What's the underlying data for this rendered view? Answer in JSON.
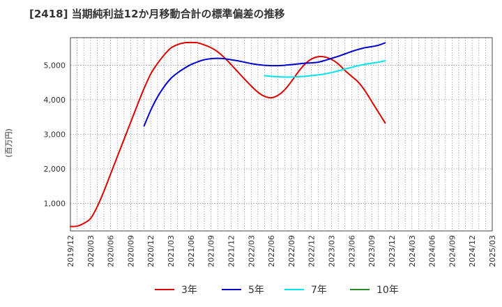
{
  "chart_data": {
    "type": "line",
    "title": "[2418]  当期純利益12か月移動合計の標準偏差の推移",
    "ylabel": "(百万円)",
    "xlabel": "",
    "ylim": [
      200,
      5800
    ],
    "yticks": [
      1000,
      2000,
      3000,
      4000,
      5000
    ],
    "ytick_labels": [
      "1,000",
      "2,000",
      "3,000",
      "4,000",
      "5,000"
    ],
    "xtick_labels": [
      "2019/12",
      "2020/03",
      "2020/06",
      "2020/09",
      "2020/12",
      "2021/03",
      "2021/06",
      "2021/09",
      "2021/12",
      "2022/03",
      "2022/06",
      "2022/09",
      "2022/12",
      "2023/03",
      "2023/06",
      "2023/09",
      "2023/12",
      "2024/03",
      "2024/06",
      "2024/09",
      "2024/12",
      "2025/03"
    ],
    "grid": true,
    "legend_position": "bottom",
    "series": [
      {
        "name": "3年",
        "color": "#dd0000",
        "points": [
          [
            0,
            330
          ],
          [
            1,
            340
          ],
          [
            2,
            420
          ],
          [
            3,
            560
          ],
          [
            4,
            900
          ],
          [
            5,
            1350
          ],
          [
            6,
            1850
          ],
          [
            7,
            2350
          ],
          [
            8,
            2850
          ],
          [
            9,
            3350
          ],
          [
            10,
            3850
          ],
          [
            11,
            4330
          ],
          [
            12,
            4750
          ],
          [
            13,
            5050
          ],
          [
            14,
            5300
          ],
          [
            15,
            5500
          ],
          [
            16,
            5600
          ],
          [
            17,
            5650
          ],
          [
            18,
            5660
          ],
          [
            19,
            5650
          ],
          [
            20,
            5590
          ],
          [
            21,
            5510
          ],
          [
            22,
            5390
          ],
          [
            23,
            5220
          ],
          [
            24,
            5020
          ],
          [
            25,
            4810
          ],
          [
            26,
            4600
          ],
          [
            27,
            4400
          ],
          [
            28,
            4220
          ],
          [
            29,
            4100
          ],
          [
            30,
            4060
          ],
          [
            31,
            4130
          ],
          [
            32,
            4290
          ],
          [
            33,
            4530
          ],
          [
            34,
            4800
          ],
          [
            35,
            5030
          ],
          [
            36,
            5180
          ],
          [
            37,
            5250
          ],
          [
            38,
            5240
          ],
          [
            39,
            5170
          ],
          [
            40,
            5040
          ],
          [
            41,
            4850
          ],
          [
            42,
            4680
          ],
          [
            43,
            4510
          ],
          [
            44,
            4260
          ],
          [
            45,
            3950
          ],
          [
            46,
            3640
          ],
          [
            47,
            3330
          ]
        ]
      },
      {
        "name": "5年",
        "color": "#0000cc",
        "points": [
          [
            11,
            3240
          ],
          [
            12,
            3700
          ],
          [
            13,
            4080
          ],
          [
            14,
            4380
          ],
          [
            15,
            4620
          ],
          [
            16,
            4780
          ],
          [
            17,
            4910
          ],
          [
            18,
            5020
          ],
          [
            19,
            5100
          ],
          [
            20,
            5160
          ],
          [
            21,
            5190
          ],
          [
            22,
            5200
          ],
          [
            23,
            5190
          ],
          [
            24,
            5160
          ],
          [
            25,
            5130
          ],
          [
            26,
            5090
          ],
          [
            27,
            5050
          ],
          [
            28,
            5020
          ],
          [
            29,
            5000
          ],
          [
            30,
            4990
          ],
          [
            31,
            4990
          ],
          [
            32,
            5000
          ],
          [
            33,
            5020
          ],
          [
            34,
            5040
          ],
          [
            35,
            5060
          ],
          [
            36,
            5070
          ],
          [
            37,
            5090
          ],
          [
            38,
            5140
          ],
          [
            39,
            5200
          ],
          [
            40,
            5260
          ],
          [
            41,
            5330
          ],
          [
            42,
            5400
          ],
          [
            43,
            5460
          ],
          [
            44,
            5510
          ],
          [
            45,
            5540
          ],
          [
            46,
            5580
          ],
          [
            47,
            5650
          ]
        ]
      },
      {
        "name": "7年",
        "color": "#00e5ee",
        "points": [
          [
            29,
            4700
          ],
          [
            30,
            4680
          ],
          [
            31,
            4670
          ],
          [
            32,
            4660
          ],
          [
            33,
            4660
          ],
          [
            34,
            4670
          ],
          [
            35,
            4680
          ],
          [
            36,
            4700
          ],
          [
            37,
            4720
          ],
          [
            38,
            4750
          ],
          [
            39,
            4790
          ],
          [
            40,
            4840
          ],
          [
            41,
            4890
          ],
          [
            42,
            4940
          ],
          [
            43,
            4990
          ],
          [
            44,
            5030
          ],
          [
            45,
            5060
          ],
          [
            46,
            5090
          ],
          [
            47,
            5130
          ]
        ]
      },
      {
        "name": "10年",
        "color": "#228b22",
        "points": []
      }
    ]
  }
}
